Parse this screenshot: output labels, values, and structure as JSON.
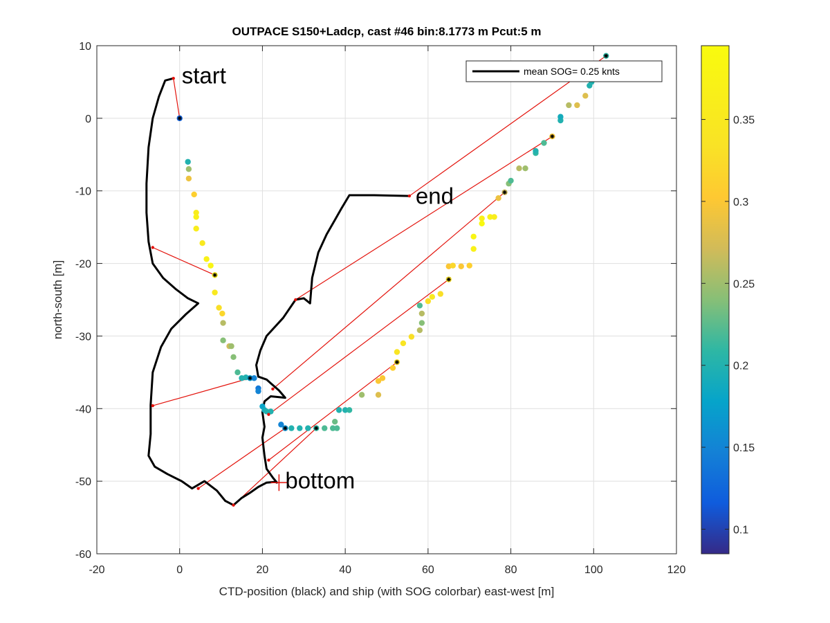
{
  "chart_data": {
    "type": "scatter",
    "title": "OUTPACE S150+Ladcp, cast #46 bin:8.1773 m  Pcut:5 m",
    "xlabel": "CTD-position (black) and ship (with SOG colorbar) east-west [m]",
    "ylabel": "north-south [m]",
    "xlim": [
      -20,
      120
    ],
    "ylim": [
      -60,
      10
    ],
    "xticks": [
      "-20",
      "0",
      "20",
      "40",
      "60",
      "80",
      "100",
      "120"
    ],
    "yticks": [
      "-60",
      "-50",
      "-40",
      "-30",
      "-20",
      "-10",
      "0",
      "10"
    ],
    "grid": true,
    "legend": {
      "placement": "top-right",
      "label": "mean SOG=  0.25 knts",
      "color": "#000000"
    },
    "colorbar": {
      "range": [
        0.085,
        0.395
      ],
      "ticks": [
        "0.1",
        "0.15",
        "0.2",
        "0.25",
        "0.3",
        "0.35"
      ],
      "tick_values": [
        0.1,
        0.15,
        0.2,
        0.25,
        0.3,
        0.35
      ],
      "colormap": "parula"
    },
    "annotations": [
      {
        "text": "start",
        "x": 0.5,
        "y": 4.8
      },
      {
        "text": "end",
        "x": 57,
        "y": -11.8
      },
      {
        "text": "bottom",
        "x": 25.5,
        "y": -51
      }
    ],
    "ctd_track": [
      [
        -1.5,
        5.5
      ],
      [
        -3.5,
        5.2
      ],
      [
        -5,
        3
      ],
      [
        -6.5,
        0
      ],
      [
        -7.5,
        -4
      ],
      [
        -8,
        -9
      ],
      [
        -8,
        -13
      ],
      [
        -7.5,
        -17
      ],
      [
        -6.5,
        -20
      ],
      [
        -4,
        -22
      ],
      [
        -1,
        -23.5
      ],
      [
        2,
        -24.8
      ],
      [
        4.5,
        -25.5
      ],
      [
        1.5,
        -27
      ],
      [
        -2,
        -29
      ],
      [
        -4.5,
        -31.5
      ],
      [
        -6.5,
        -35
      ],
      [
        -7,
        -39.5
      ],
      [
        -7,
        -43.5
      ],
      [
        -7.5,
        -46.5
      ],
      [
        -6,
        -48
      ],
      [
        -3,
        -49
      ],
      [
        0.5,
        -50
      ],
      [
        3,
        -51
      ],
      [
        6,
        -50
      ],
      [
        9,
        -51.3
      ],
      [
        11,
        -52.7
      ],
      [
        13,
        -53.3
      ],
      [
        15,
        -52.3
      ],
      [
        17,
        -51.6
      ],
      [
        19,
        -50.8
      ],
      [
        21,
        -50.2
      ],
      [
        23,
        -50.1
      ],
      [
        23.5,
        -50.2
      ],
      [
        22.5,
        -49.5
      ],
      [
        21,
        -48.3
      ],
      [
        20.5,
        -46.5
      ],
      [
        20,
        -44
      ],
      [
        20.5,
        -42.5
      ],
      [
        20,
        -40.5
      ],
      [
        20.5,
        -39
      ],
      [
        22,
        -38.3
      ],
      [
        25.5,
        -38.5
      ],
      [
        24,
        -37.5
      ],
      [
        22,
        -36.5
      ],
      [
        21,
        -36
      ],
      [
        19,
        -35.6
      ],
      [
        18.5,
        -34
      ],
      [
        19.5,
        -32
      ],
      [
        21,
        -30
      ],
      [
        25,
        -27.5
      ],
      [
        28,
        -25
      ],
      [
        30,
        -24.8
      ],
      [
        31.5,
        -25.5
      ],
      [
        32,
        -22
      ],
      [
        33.5,
        -18.5
      ],
      [
        35.5,
        -16
      ],
      [
        37.5,
        -14
      ],
      [
        39,
        -12.5
      ],
      [
        41,
        -10.6
      ],
      [
        47,
        -10.6
      ],
      [
        55.5,
        -10.7
      ]
    ],
    "ship_points": [
      [
        0,
        0,
        0.12
      ],
      [
        2,
        -6,
        0.2
      ],
      [
        2.2,
        -7,
        0.25
      ],
      [
        2.2,
        -8.3,
        0.29
      ],
      [
        3.5,
        -10.5,
        0.31
      ],
      [
        4,
        -13,
        0.36
      ],
      [
        4,
        -13.6,
        0.37
      ],
      [
        4,
        -15.2,
        0.36
      ],
      [
        5.5,
        -17.2,
        0.35
      ],
      [
        6.5,
        -19.4,
        0.37
      ],
      [
        7.5,
        -20.3,
        0.38
      ],
      [
        8.5,
        -21.6,
        0.36
      ],
      [
        8.5,
        -24,
        0.35
      ],
      [
        9.5,
        -26.1,
        0.33
      ],
      [
        10.3,
        -26.9,
        0.32
      ],
      [
        10.5,
        -28.2,
        0.26
      ],
      [
        10.5,
        -30.6,
        0.24
      ],
      [
        12,
        -31.4,
        0.27
      ],
      [
        12.5,
        -31.4,
        0.25
      ],
      [
        13,
        -32.9,
        0.24
      ],
      [
        14,
        -35,
        0.22
      ],
      [
        15,
        -35.8,
        0.2
      ],
      [
        16,
        -35.7,
        0.2
      ],
      [
        17,
        -35.8,
        0.17
      ],
      [
        18,
        -35.8,
        0.15
      ],
      [
        19,
        -37.2,
        0.14
      ],
      [
        19,
        -37.6,
        0.15
      ],
      [
        20,
        -39.7,
        0.18
      ],
      [
        20.5,
        -40.2,
        0.19
      ],
      [
        21,
        -40.4,
        0.2
      ],
      [
        22,
        -40.4,
        0.2
      ],
      [
        24.5,
        -42.2,
        0.15
      ],
      [
        25.5,
        -42.7,
        0.16
      ],
      [
        27,
        -42.7,
        0.2
      ],
      [
        29,
        -42.7,
        0.2
      ],
      [
        31,
        -42.7,
        0.2
      ],
      [
        33,
        -42.7,
        0.21
      ],
      [
        35,
        -42.7,
        0.22
      ],
      [
        37,
        -42.7,
        0.22
      ],
      [
        38,
        -42.7,
        0.22
      ],
      [
        37.5,
        -41.8,
        0.23
      ],
      [
        38.5,
        -40.2,
        0.2
      ],
      [
        40,
        -40.2,
        0.2
      ],
      [
        41,
        -40.2,
        0.21
      ],
      [
        44,
        -38.1,
        0.25
      ],
      [
        48,
        -38.1,
        0.28
      ],
      [
        48,
        -36.2,
        0.3
      ],
      [
        49,
        -35.8,
        0.3
      ],
      [
        51.5,
        -34.4,
        0.31
      ],
      [
        52.5,
        -33.6,
        0.33
      ],
      [
        52.5,
        -32.2,
        0.34
      ],
      [
        54,
        -31,
        0.34
      ],
      [
        56,
        -30.1,
        0.33
      ],
      [
        58,
        -29.2,
        0.26
      ],
      [
        58.5,
        -28.2,
        0.24
      ],
      [
        58.5,
        -26.9,
        0.26
      ],
      [
        58,
        -25.8,
        0.22
      ],
      [
        60,
        -25.2,
        0.33
      ],
      [
        61,
        -24.6,
        0.35
      ],
      [
        63,
        -24.2,
        0.33
      ],
      [
        65,
        -22.2,
        0.33
      ],
      [
        65,
        -20.4,
        0.3
      ],
      [
        66,
        -20.3,
        0.32
      ],
      [
        68,
        -20.4,
        0.3
      ],
      [
        70,
        -20.3,
        0.31
      ],
      [
        71,
        -18,
        0.37
      ],
      [
        71,
        -16.3,
        0.38
      ],
      [
        73,
        -14.5,
        0.39
      ],
      [
        73,
        -13.8,
        0.37
      ],
      [
        75,
        -13.6,
        0.37
      ],
      [
        76,
        -13.6,
        0.36
      ],
      [
        77,
        -11,
        0.29
      ],
      [
        78.5,
        -10.2,
        0.27
      ],
      [
        79.5,
        -9,
        0.24
      ],
      [
        80,
        -8.6,
        0.22
      ],
      [
        82,
        -6.9,
        0.26
      ],
      [
        83.5,
        -6.9,
        0.25
      ],
      [
        86,
        -4.8,
        0.21
      ],
      [
        86,
        -4.5,
        0.2
      ],
      [
        88,
        -3.4,
        0.22
      ],
      [
        90,
        -2.5,
        0.3
      ],
      [
        92,
        -0.3,
        0.2
      ],
      [
        92,
        0.2,
        0.19
      ],
      [
        94,
        1.8,
        0.26
      ],
      [
        96,
        1.8,
        0.28
      ],
      [
        98,
        3.1,
        0.28
      ],
      [
        99,
        4.5,
        0.2
      ],
      [
        99.5,
        5,
        0.2
      ],
      [
        101,
        6,
        0.27
      ],
      [
        103,
        8.6,
        0.21
      ]
    ],
    "ship_black_markers": [
      [
        0,
        0
      ],
      [
        8.5,
        -21.6
      ],
      [
        17,
        -35.8
      ],
      [
        25.5,
        -42.7
      ],
      [
        33,
        -42.7
      ],
      [
        52.5,
        -33.6
      ],
      [
        65,
        -22.2
      ],
      [
        78.5,
        -10.2
      ],
      [
        90,
        -2.5
      ],
      [
        103,
        8.6
      ]
    ],
    "connector_lines": [
      [
        [
          -1.5,
          5.5
        ],
        [
          0,
          0
        ]
      ],
      [
        [
          -6.5,
          -17.8
        ],
        [
          8.5,
          -21.6
        ]
      ],
      [
        [
          -6.5,
          -39.6
        ],
        [
          17,
          -35.8
        ]
      ],
      [
        [
          4.5,
          -51
        ],
        [
          25.5,
          -42.7
        ]
      ],
      [
        [
          13,
          -53.3
        ],
        [
          33,
          -42.7
        ]
      ],
      [
        [
          21.5,
          -47.1
        ],
        [
          52.5,
          -33.6
        ]
      ],
      [
        [
          21.5,
          -40.8
        ],
        [
          65,
          -22.2
        ]
      ],
      [
        [
          22.5,
          -37.3
        ],
        [
          78.5,
          -10.2
        ]
      ],
      [
        [
          28,
          -25
        ],
        [
          90,
          -2.5
        ]
      ],
      [
        [
          55.5,
          -10.7
        ],
        [
          103,
          8.6
        ]
      ]
    ],
    "bottom_marker": [
      24,
      -50.2
    ]
  }
}
